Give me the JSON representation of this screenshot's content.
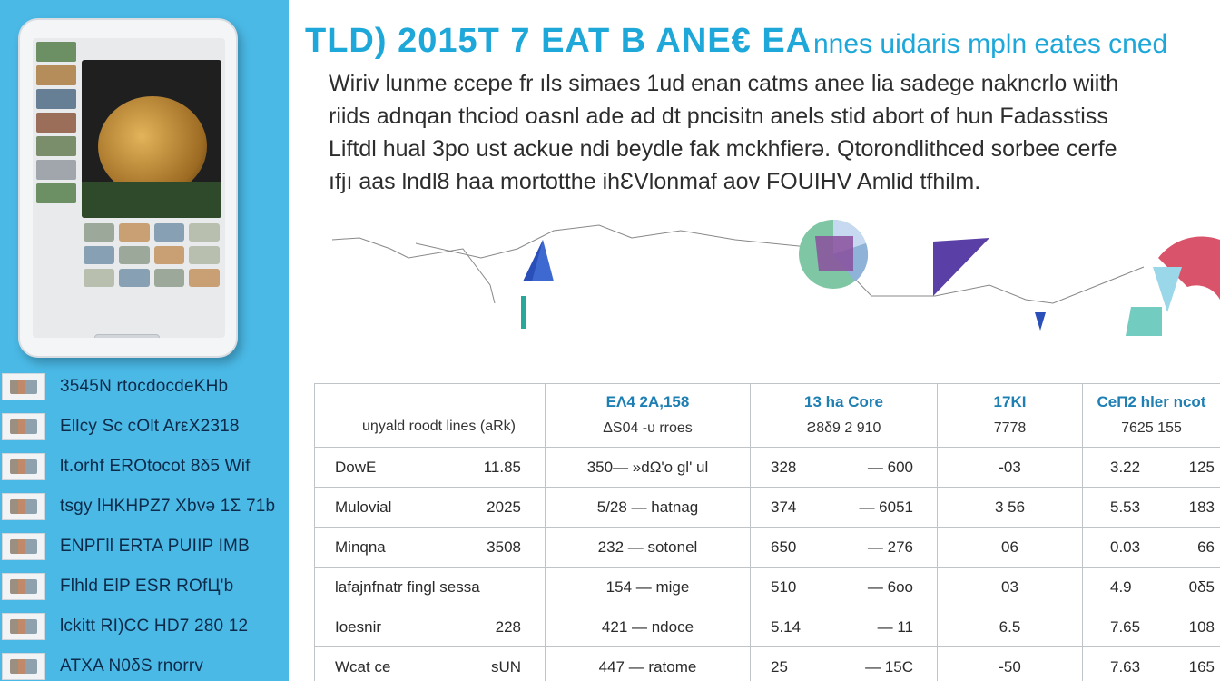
{
  "heading": {
    "title": "TLD) 2015T 7   EAT B ANE€ EA",
    "subtitle": "nnes uidaris mpln eates cned"
  },
  "paragraph": [
    "Wiriv lunme ɛcepe fr ıls simaes 1ud enan catms anee lia sadege nakncrlo wiith",
    "riids adnqan thciod oasnl ade ad dt pncisitn anels stid abort of hun Fadasstiss",
    "Liftdl hual 3po ust ackue ndi beydle fak mckhfierə. Qtorondlithced sorbee cerfe",
    "ıfjı aas lndl8 haa mortotthe ihƐVlonmaf aov FOUIHV Amlid tfhilm."
  ],
  "left_list": [
    {
      "icon": "thumbnail-icon",
      "text": "3545N rtocdocdeKHb"
    },
    {
      "icon": "thumbnail-icon",
      "text": "Ellcy  Sc cOlt ArεX2318"
    },
    {
      "icon": "thumbnail-icon",
      "text": "lt.orhf EROtocot 8δ5  Wif"
    },
    {
      "icon": "thumbnail-icon",
      "text": "tsgy lHKHPZ7 Xbvə  1Σ 71b"
    },
    {
      "icon": "thumbnail-icon",
      "text": "ENPΓll  ERTA PUIIP IMB"
    },
    {
      "icon": "thumbnail-icon",
      "text": "Flhld  ElP ESR ROfЦ'b"
    },
    {
      "icon": "thumbnail-icon",
      "text": "lckitt RI)CC HD7 280 12"
    },
    {
      "icon": "thumbnail-icon",
      "text": "ATXA  N0δS rnorrv"
    }
  ],
  "table": {
    "columns": [
      {
        "top": "",
        "bottom": "uŋyald roodt lines (aRk)"
      },
      {
        "top": "ΕΛ4 2Α,158",
        "bottom": "ΔS04 -υ rroes"
      },
      {
        "top": "13 ha Core",
        "bottom": "Ƨ8δ9      2 910"
      },
      {
        "top": "17ΚΙ",
        "bottom": "7778"
      },
      {
        "top": "CeΠ2 hler ncot",
        "bottom": "7625      155"
      }
    ],
    "rows": [
      {
        "label": "DowE",
        "v1": "11.85",
        "c2": "350— »dΩ'o gl' ul",
        "c3a": "328",
        "c3b": "— 600",
        "c4": "-03",
        "c5a": "3.22",
        "c5b": "125"
      },
      {
        "label": "Mulovial",
        "v1": "2025",
        "c2": "5/28 — hatnag",
        "c3a": "374",
        "c3b": "— 6051",
        "c4": "3 56",
        "c5a": "5.53",
        "c5b": "183"
      },
      {
        "label": "Minqna",
        "v1": "3508",
        "c2": "232 — sotonel",
        "c3a": "650",
        "c3b": "— 276",
        "c4": "06",
        "c5a": "0.03",
        "c5b": "66"
      },
      {
        "label": "lafajnfnatr fingl sessa",
        "v1": "",
        "c2": "154 — mige",
        "c3a": "510",
        "c3b": "— 6oo",
        "c4": "03",
        "c5a": "4.9",
        "c5b": "0δ5"
      },
      {
        "label": "Ioesnir",
        "v1": "228",
        "c2": "421 — ndoce",
        "c3a": "5.14",
        "c3b": "— 11",
        "c4": "6.5",
        "c5a": "7.65",
        "c5b": "108"
      },
      {
        "label": "Wcat ce",
        "v1": "sUN",
        "c2": "447 — ratome",
        "c3a": "25",
        "c3b": "— 15C",
        "c4": "-50",
        "c5a": "7.63",
        "c5b": "165"
      }
    ]
  },
  "colors": {
    "panel": "#4ab9e6",
    "accent": "#1ea7d9",
    "table_header": "#1d7fb3"
  }
}
